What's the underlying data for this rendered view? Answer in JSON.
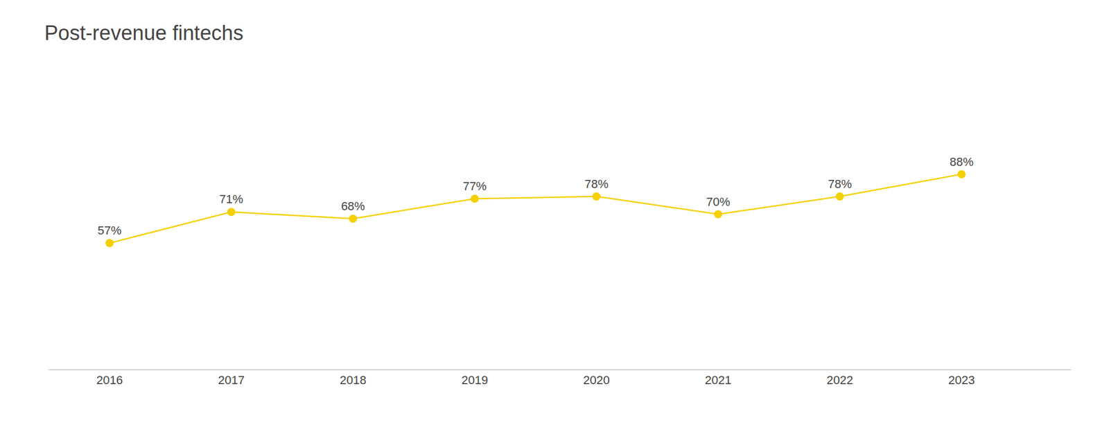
{
  "chart_data": {
    "type": "line",
    "title": "Post-revenue fintechs",
    "x": [
      2016,
      2017,
      2018,
      2019,
      2020,
      2021,
      2022,
      2023
    ],
    "values": [
      57,
      71,
      68,
      77,
      78,
      70,
      78,
      88
    ],
    "value_labels": [
      "57%",
      "71%",
      "68%",
      "77%",
      "78%",
      "70%",
      "78%",
      "88%"
    ],
    "data_labels": true,
    "color": "#F5D000",
    "marker": "circle",
    "xlim": [
      2015.5,
      2023.9
    ],
    "xticks": [
      2016,
      2017,
      2018,
      2019,
      2020,
      2021,
      2022,
      2023
    ],
    "ylim": [
      0,
      130
    ],
    "tick_labels": "x",
    "grid": false
  }
}
